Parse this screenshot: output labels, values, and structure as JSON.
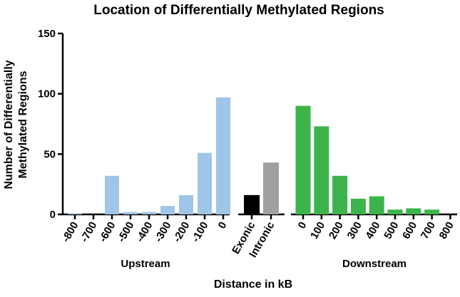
{
  "chart_data": {
    "type": "bar",
    "title": "Location of Differentially Methylated Regions",
    "ylabel_lines": [
      "Number of Differentially",
      "Methylated Regions"
    ],
    "xlabel": "Distance in kB",
    "ylim": [
      0,
      150
    ],
    "yticks": [
      "0",
      "50",
      "100",
      "150"
    ],
    "grid": false,
    "legend": "none",
    "panels": [
      {
        "group_label": "Upstream",
        "color": "#9fc5e8",
        "categories": [
          "-800",
          "-700",
          "-600",
          "-500",
          "-400",
          "-300",
          "-200",
          "-100",
          "0"
        ],
        "values": [
          1,
          0,
          32,
          2,
          2,
          7,
          16,
          51,
          97
        ]
      },
      {
        "group_label": "",
        "color": null,
        "categories": [
          "Exonic",
          "Intronic"
        ],
        "values": [
          16,
          43
        ],
        "colors": [
          "#000000",
          "#a0a0a0"
        ]
      },
      {
        "group_label": "Downstream",
        "color": "#3cb44b",
        "categories": [
          "0",
          "100",
          "200",
          "300",
          "400",
          "500",
          "600",
          "700",
          "800"
        ],
        "values": [
          90,
          73,
          32,
          13,
          15,
          4,
          5,
          4,
          0
        ]
      }
    ]
  }
}
